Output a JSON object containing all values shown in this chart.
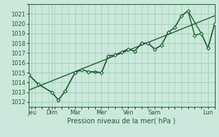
{
  "xlabel": "Pression niveau de la mer( hPa )",
  "bg_color": "#cce8dc",
  "grid_color": "#99ccb3",
  "line_color": "#1a5c2a",
  "ylim": [
    1011.5,
    1022.0
  ],
  "xlim": [
    0,
    28
  ],
  "yticks": [
    1012,
    1013,
    1014,
    1015,
    1016,
    1017,
    1018,
    1019,
    1020,
    1021
  ],
  "xtick_positions": [
    0.5,
    3.5,
    7,
    11,
    15,
    19,
    23,
    27
  ],
  "xtick_labels": [
    "Jeu",
    "Dim",
    "Mar",
    "Mer",
    "Ven",
    "Sam",
    "",
    "Lun"
  ],
  "series1_x": [
    0,
    1.5,
    3.5,
    4.5,
    5.5,
    7,
    8,
    9,
    10,
    11,
    12,
    13,
    14,
    15,
    16,
    17,
    18,
    19,
    20,
    21,
    22,
    23,
    24,
    25,
    26,
    27,
    28
  ],
  "series1_y": [
    1014.8,
    1013.8,
    1013.0,
    1012.2,
    1013.1,
    1015.0,
    1015.3,
    1015.1,
    1015.1,
    1015.0,
    1016.7,
    1016.8,
    1017.1,
    1017.4,
    1017.2,
    1018.0,
    1018.0,
    1017.4,
    1017.8,
    1019.1,
    1019.6,
    1020.8,
    1021.3,
    1018.8,
    1019.0,
    1017.5,
    1020.0
  ],
  "series2_x": [
    0,
    1.5,
    3.5,
    4.5,
    5.5,
    7,
    8,
    9,
    11,
    12,
    13,
    14,
    15,
    16,
    17,
    18,
    19,
    20,
    21,
    22,
    23,
    24,
    26,
    27,
    28
  ],
  "series2_y": [
    1014.8,
    1013.8,
    1013.0,
    1012.2,
    1013.1,
    1015.0,
    1015.3,
    1015.1,
    1015.0,
    1016.7,
    1016.8,
    1017.1,
    1017.4,
    1017.2,
    1018.0,
    1018.0,
    1017.4,
    1017.8,
    1019.1,
    1019.6,
    1020.8,
    1021.3,
    1019.0,
    1017.5,
    1020.0
  ],
  "trend_x": [
    0,
    28
  ],
  "trend_y": [
    1013.2,
    1020.8
  ],
  "marker": "D",
  "markersize": 2.5,
  "linewidth": 1.0,
  "xlabel_fontsize": 7,
  "tick_fontsize": 6
}
